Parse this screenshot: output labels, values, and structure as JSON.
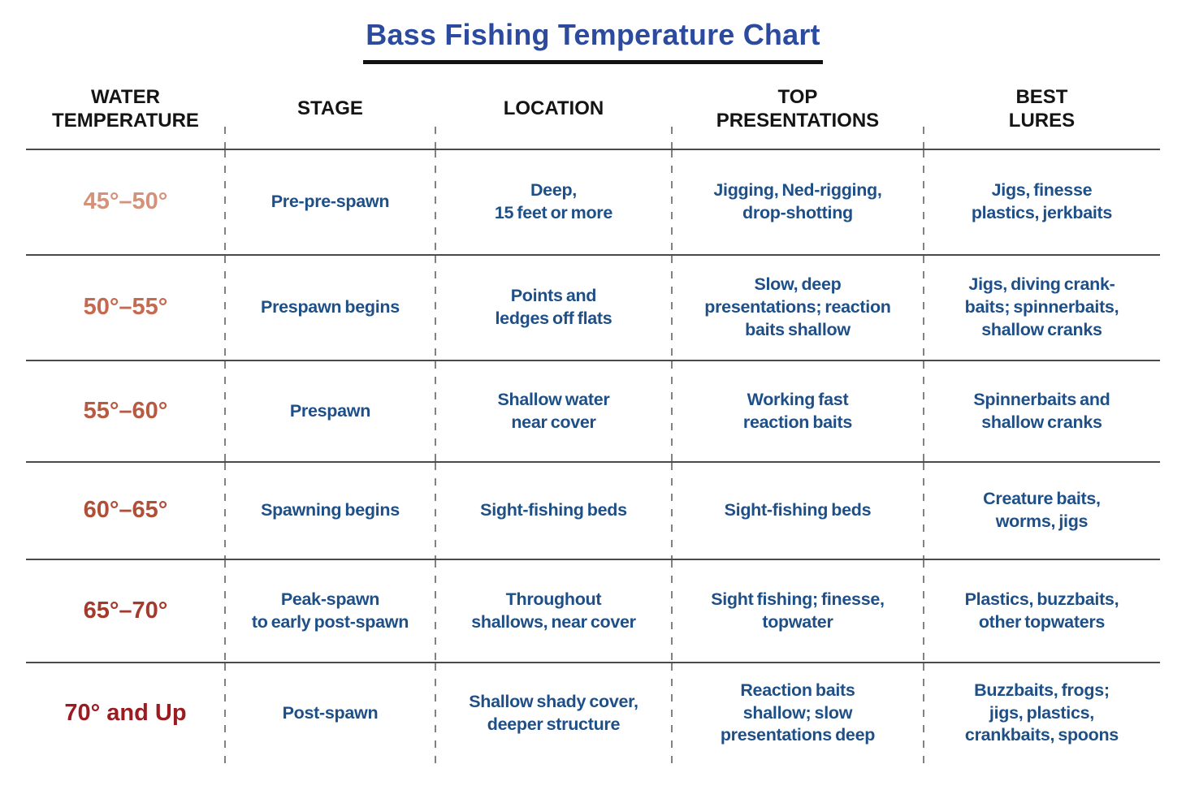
{
  "styles": {
    "title_color": "#2d4b9e",
    "underline_color": "#111111",
    "header_text_color": "#141414",
    "body_text_color": "#1e4f87",
    "row_line_color": "#4a4a4a",
    "dashed_divider_color": "#828282",
    "background_color": "#ffffff"
  },
  "chart_data": {
    "type": "table",
    "title": "Bass Fishing Temperature Chart",
    "columns": [
      "WATER\nTEMPERATURE",
      "STAGE",
      "LOCATION",
      "TOP\nPRESENTATIONS",
      "BEST\nLURES"
    ],
    "rows": [
      {
        "temperature": "45°–50°",
        "temperature_color": "#d4927b",
        "stage": "Pre-pre-spawn",
        "location": "Deep,\n15 feet or more",
        "top_presentations": "Jigging, Ned-rigging,\ndrop-shotting",
        "best_lures": "Jigs, finesse\nplastics, jerkbaits"
      },
      {
        "temperature": "50°–55°",
        "temperature_color": "#c46a50",
        "stage": "Prespawn begins",
        "location": "Points and\nledges off flats",
        "top_presentations": "Slow, deep\npresentations; reaction\nbaits shallow",
        "best_lures": "Jigs, diving crank-\nbaits; spinnerbaits,\nshallow cranks"
      },
      {
        "temperature": "55°–60°",
        "temperature_color": "#b75a42",
        "stage": "Prespawn",
        "location": "Shallow water\nnear cover",
        "top_presentations": "Working fast\nreaction baits",
        "best_lures": "Spinnerbaits and\nshallow cranks"
      },
      {
        "temperature": "60°–65°",
        "temperature_color": "#b04f38",
        "stage": "Spawning begins",
        "location": "Sight-fishing beds",
        "top_presentations": "Sight-fishing beds",
        "best_lures": "Creature baits,\nworms, jigs"
      },
      {
        "temperature": "65°–70°",
        "temperature_color": "#a43a2b",
        "stage": "Peak-spawn\nto early post-spawn",
        "location": "Throughout\nshallows, near cover",
        "top_presentations": "Sight fishing; finesse,\ntopwater",
        "best_lures": "Plastics, buzzbaits,\nother topwaters"
      },
      {
        "temperature": "70° and Up",
        "temperature_color": "#9a1b22",
        "stage": "Post-spawn",
        "location": "Shallow shady cover,\ndeeper structure",
        "top_presentations": "Reaction baits\nshallow; slow\npresentations deep",
        "best_lures": "Buzzbaits, frogs;\njigs, plastics,\ncrankbaits, spoons"
      }
    ]
  }
}
